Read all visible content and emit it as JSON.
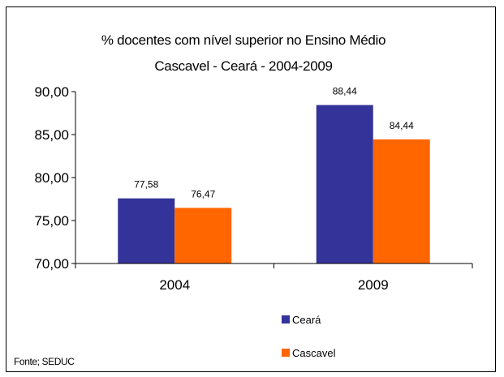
{
  "chart_data": {
    "type": "bar",
    "title": "% docentes com nível  superior no Ensino Médio",
    "subtitle": "Cascavel -  Ceará - 2004-2009",
    "categories": [
      "2004",
      "2009"
    ],
    "series": [
      {
        "name": "Ceará",
        "values": [
          77.58,
          88.44
        ],
        "labels": [
          "77,58",
          "88,44"
        ],
        "color": "#333399"
      },
      {
        "name": "Cascavel",
        "values": [
          76.47,
          84.44
        ],
        "labels": [
          "76,47",
          "84,44"
        ],
        "color": "#FF6600"
      }
    ],
    "ylim": [
      70,
      90
    ],
    "yticks": [
      90,
      85,
      80,
      75,
      70
    ],
    "ytick_labels": [
      "90,00",
      "85,00",
      "80,00",
      "75,00",
      "70,00"
    ],
    "grid": false,
    "legend_position": "bottom-right",
    "xlabel": "",
    "ylabel": ""
  },
  "source": "Fonte; SEDUC"
}
